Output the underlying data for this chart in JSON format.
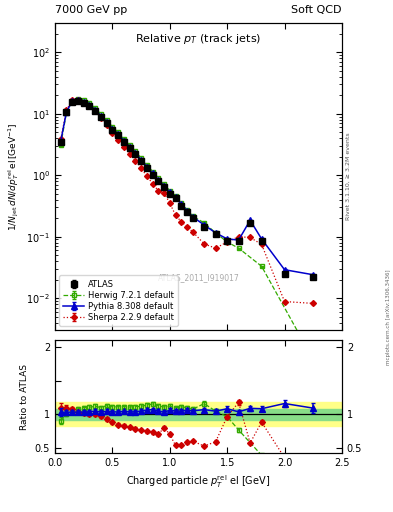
{
  "title_left": "7000 GeV pp",
  "title_right": "Soft QCD",
  "plot_title": "Relative $p_T$ (track jets)",
  "ylabel_main": "$1/N_{\\rm jet}\\,dN/dp^{\\rm rel}_T\\,{\\rm el}\\,[{\\rm GeV}^{-1}]$",
  "ylabel_ratio": "Ratio to ATLAS",
  "xlabel": "Charged particle $p^{\\rm rel}_T$ el [GeV]",
  "right_label_top": "Rivet 3.1.10, ≥ 3.2M events",
  "right_label_bot": "mcplots.cern.ch [arXiv:1306.3436]",
  "watermark": "ATLAS_2011_I919017",
  "atlas_x": [
    0.05,
    0.1,
    0.15,
    0.2,
    0.25,
    0.3,
    0.35,
    0.4,
    0.45,
    0.5,
    0.55,
    0.6,
    0.65,
    0.7,
    0.75,
    0.8,
    0.85,
    0.9,
    0.95,
    1.0,
    1.05,
    1.1,
    1.15,
    1.2,
    1.3,
    1.4,
    1.5,
    1.6,
    1.7,
    1.8,
    2.0,
    2.25
  ],
  "atlas_y": [
    3.5,
    10.5,
    15.5,
    16.0,
    15.0,
    13.5,
    11.0,
    9.0,
    7.0,
    5.5,
    4.5,
    3.5,
    2.8,
    2.2,
    1.7,
    1.3,
    1.0,
    0.8,
    0.65,
    0.5,
    0.42,
    0.32,
    0.25,
    0.2,
    0.145,
    0.11,
    0.085,
    0.085,
    0.17,
    0.085,
    0.025,
    0.022
  ],
  "atlas_yerr": [
    0.15,
    0.25,
    0.3,
    0.3,
    0.25,
    0.25,
    0.2,
    0.15,
    0.12,
    0.1,
    0.08,
    0.06,
    0.05,
    0.04,
    0.03,
    0.025,
    0.02,
    0.015,
    0.013,
    0.01,
    0.009,
    0.007,
    0.005,
    0.004,
    0.003,
    0.0025,
    0.002,
    0.002,
    0.005,
    0.002,
    0.001,
    0.0015
  ],
  "herwig_x": [
    0.05,
    0.1,
    0.15,
    0.2,
    0.25,
    0.3,
    0.35,
    0.4,
    0.45,
    0.5,
    0.55,
    0.6,
    0.65,
    0.7,
    0.75,
    0.8,
    0.85,
    0.9,
    0.95,
    1.0,
    1.05,
    1.1,
    1.15,
    1.2,
    1.3,
    1.4,
    1.5,
    1.6,
    1.8,
    2.25
  ],
  "herwig_y": [
    3.15,
    10.5,
    16.2,
    17.3,
    16.5,
    14.9,
    12.3,
    9.9,
    7.9,
    6.1,
    5.0,
    3.9,
    3.1,
    2.45,
    1.9,
    1.48,
    1.15,
    0.9,
    0.72,
    0.56,
    0.46,
    0.355,
    0.275,
    0.215,
    0.168,
    0.115,
    0.082,
    0.065,
    0.033,
    0.001
  ],
  "herwig_yerr": [
    0.12,
    0.25,
    0.35,
    0.35,
    0.3,
    0.28,
    0.22,
    0.18,
    0.14,
    0.11,
    0.09,
    0.07,
    0.055,
    0.044,
    0.034,
    0.027,
    0.021,
    0.016,
    0.013,
    0.01,
    0.008,
    0.006,
    0.005,
    0.004,
    0.003,
    0.002,
    0.0015,
    0.0012,
    0.0006,
    0.0001
  ],
  "pythia_x": [
    0.05,
    0.1,
    0.15,
    0.2,
    0.25,
    0.3,
    0.35,
    0.4,
    0.45,
    0.5,
    0.55,
    0.6,
    0.65,
    0.7,
    0.75,
    0.8,
    0.85,
    0.9,
    0.95,
    1.0,
    1.05,
    1.1,
    1.15,
    1.2,
    1.3,
    1.4,
    1.5,
    1.6,
    1.7,
    1.8,
    2.0,
    2.25
  ],
  "pythia_y": [
    3.6,
    10.8,
    16.0,
    16.5,
    15.5,
    14.0,
    11.5,
    9.3,
    7.3,
    5.7,
    4.65,
    3.65,
    2.9,
    2.28,
    1.78,
    1.38,
    1.07,
    0.84,
    0.67,
    0.53,
    0.44,
    0.335,
    0.265,
    0.21,
    0.155,
    0.115,
    0.092,
    0.088,
    0.185,
    0.092,
    0.029,
    0.024
  ],
  "pythia_yerr": [
    0.14,
    0.25,
    0.32,
    0.33,
    0.31,
    0.28,
    0.23,
    0.19,
    0.15,
    0.11,
    0.09,
    0.07,
    0.058,
    0.046,
    0.036,
    0.028,
    0.021,
    0.017,
    0.013,
    0.011,
    0.009,
    0.007,
    0.005,
    0.004,
    0.003,
    0.0023,
    0.0018,
    0.0018,
    0.0037,
    0.0018,
    0.0006,
    0.0005
  ],
  "sherpa_x": [
    0.05,
    0.1,
    0.15,
    0.2,
    0.25,
    0.3,
    0.35,
    0.4,
    0.45,
    0.5,
    0.55,
    0.6,
    0.65,
    0.7,
    0.75,
    0.8,
    0.85,
    0.9,
    0.95,
    1.0,
    1.05,
    1.1,
    1.15,
    1.2,
    1.3,
    1.4,
    1.5,
    1.6,
    1.7,
    1.8,
    2.0,
    2.25
  ],
  "sherpa_y": [
    3.85,
    11.5,
    16.8,
    16.5,
    15.2,
    13.5,
    11.0,
    8.7,
    6.5,
    4.85,
    3.8,
    2.9,
    2.25,
    1.72,
    1.3,
    0.97,
    0.73,
    0.56,
    0.52,
    0.35,
    0.225,
    0.175,
    0.145,
    0.12,
    0.076,
    0.065,
    0.082,
    0.1,
    0.097,
    0.075,
    0.0088,
    0.0082
  ],
  "sherpa_yerr": [
    0.15,
    0.28,
    0.35,
    0.33,
    0.3,
    0.27,
    0.22,
    0.17,
    0.13,
    0.097,
    0.076,
    0.058,
    0.045,
    0.034,
    0.026,
    0.019,
    0.015,
    0.011,
    0.01,
    0.007,
    0.0045,
    0.0035,
    0.003,
    0.0024,
    0.0015,
    0.0013,
    0.0016,
    0.002,
    0.002,
    0.0015,
    0.0002,
    0.0002
  ],
  "atlas_color": "#000000",
  "herwig_color": "#33aa00",
  "pythia_color": "#0000cc",
  "sherpa_color": "#cc0000",
  "band_yellow": [
    0.82,
    1.18
  ],
  "band_green": [
    0.92,
    1.08
  ],
  "xlim": [
    0.0,
    2.5
  ],
  "ylim_main": [
    0.003,
    300
  ],
  "ylim_ratio": [
    0.42,
    2.1
  ]
}
